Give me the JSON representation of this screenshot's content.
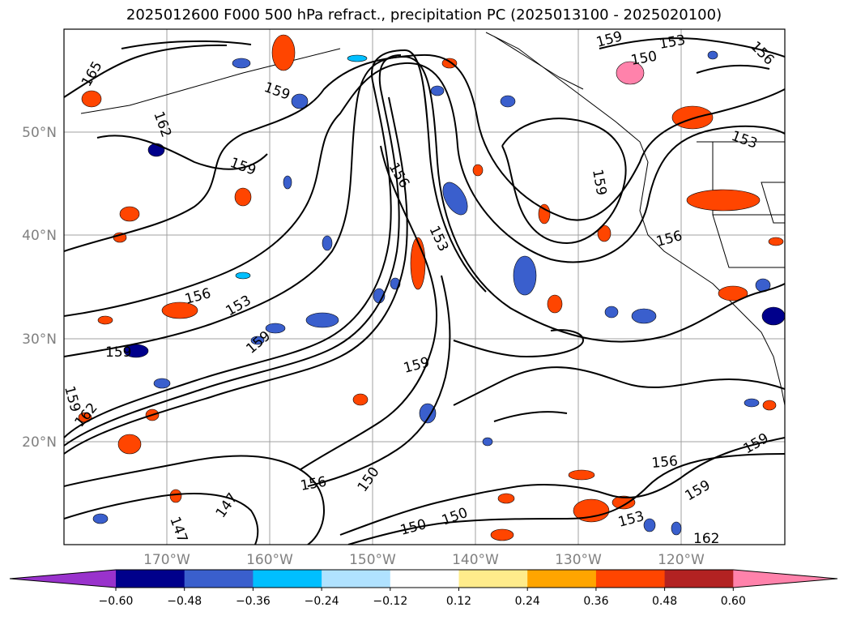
{
  "title": "2025012600 F000 500 hPa refract., precipitation PC (2025013100 - 2025020100)",
  "map": {
    "lat_ticks": [
      "50°N",
      "40°N",
      "30°N",
      "20°N"
    ],
    "lon_ticks": [
      "170°W",
      "160°W",
      "150°W",
      "140°W",
      "130°W",
      "120°W"
    ],
    "contour_labels": [
      "165",
      "162",
      "159",
      "159",
      "156",
      "153",
      "159",
      "159",
      "156",
      "153",
      "159",
      "159",
      "162",
      "156",
      "150",
      "147",
      "147",
      "150",
      "159",
      "153",
      "156",
      "150",
      "153",
      "159",
      "156",
      "156",
      "159",
      "159",
      "153",
      "162",
      "150",
      "159",
      "162",
      "159",
      "159"
    ]
  },
  "colorbar": {
    "ticks": [
      "−0.60",
      "−0.48",
      "−0.36",
      "−0.24",
      "−0.12",
      "0.12",
      "0.24",
      "0.36",
      "0.48",
      "0.60"
    ],
    "colors": [
      "#9932CC",
      "#00008B",
      "#3A5FCD",
      "#00BFFF",
      "#B0E2FF",
      "#FFFFFF",
      "#FFEC8B",
      "#FFA500",
      "#FF4500",
      "#B22222",
      "#FF82AB"
    ]
  }
}
